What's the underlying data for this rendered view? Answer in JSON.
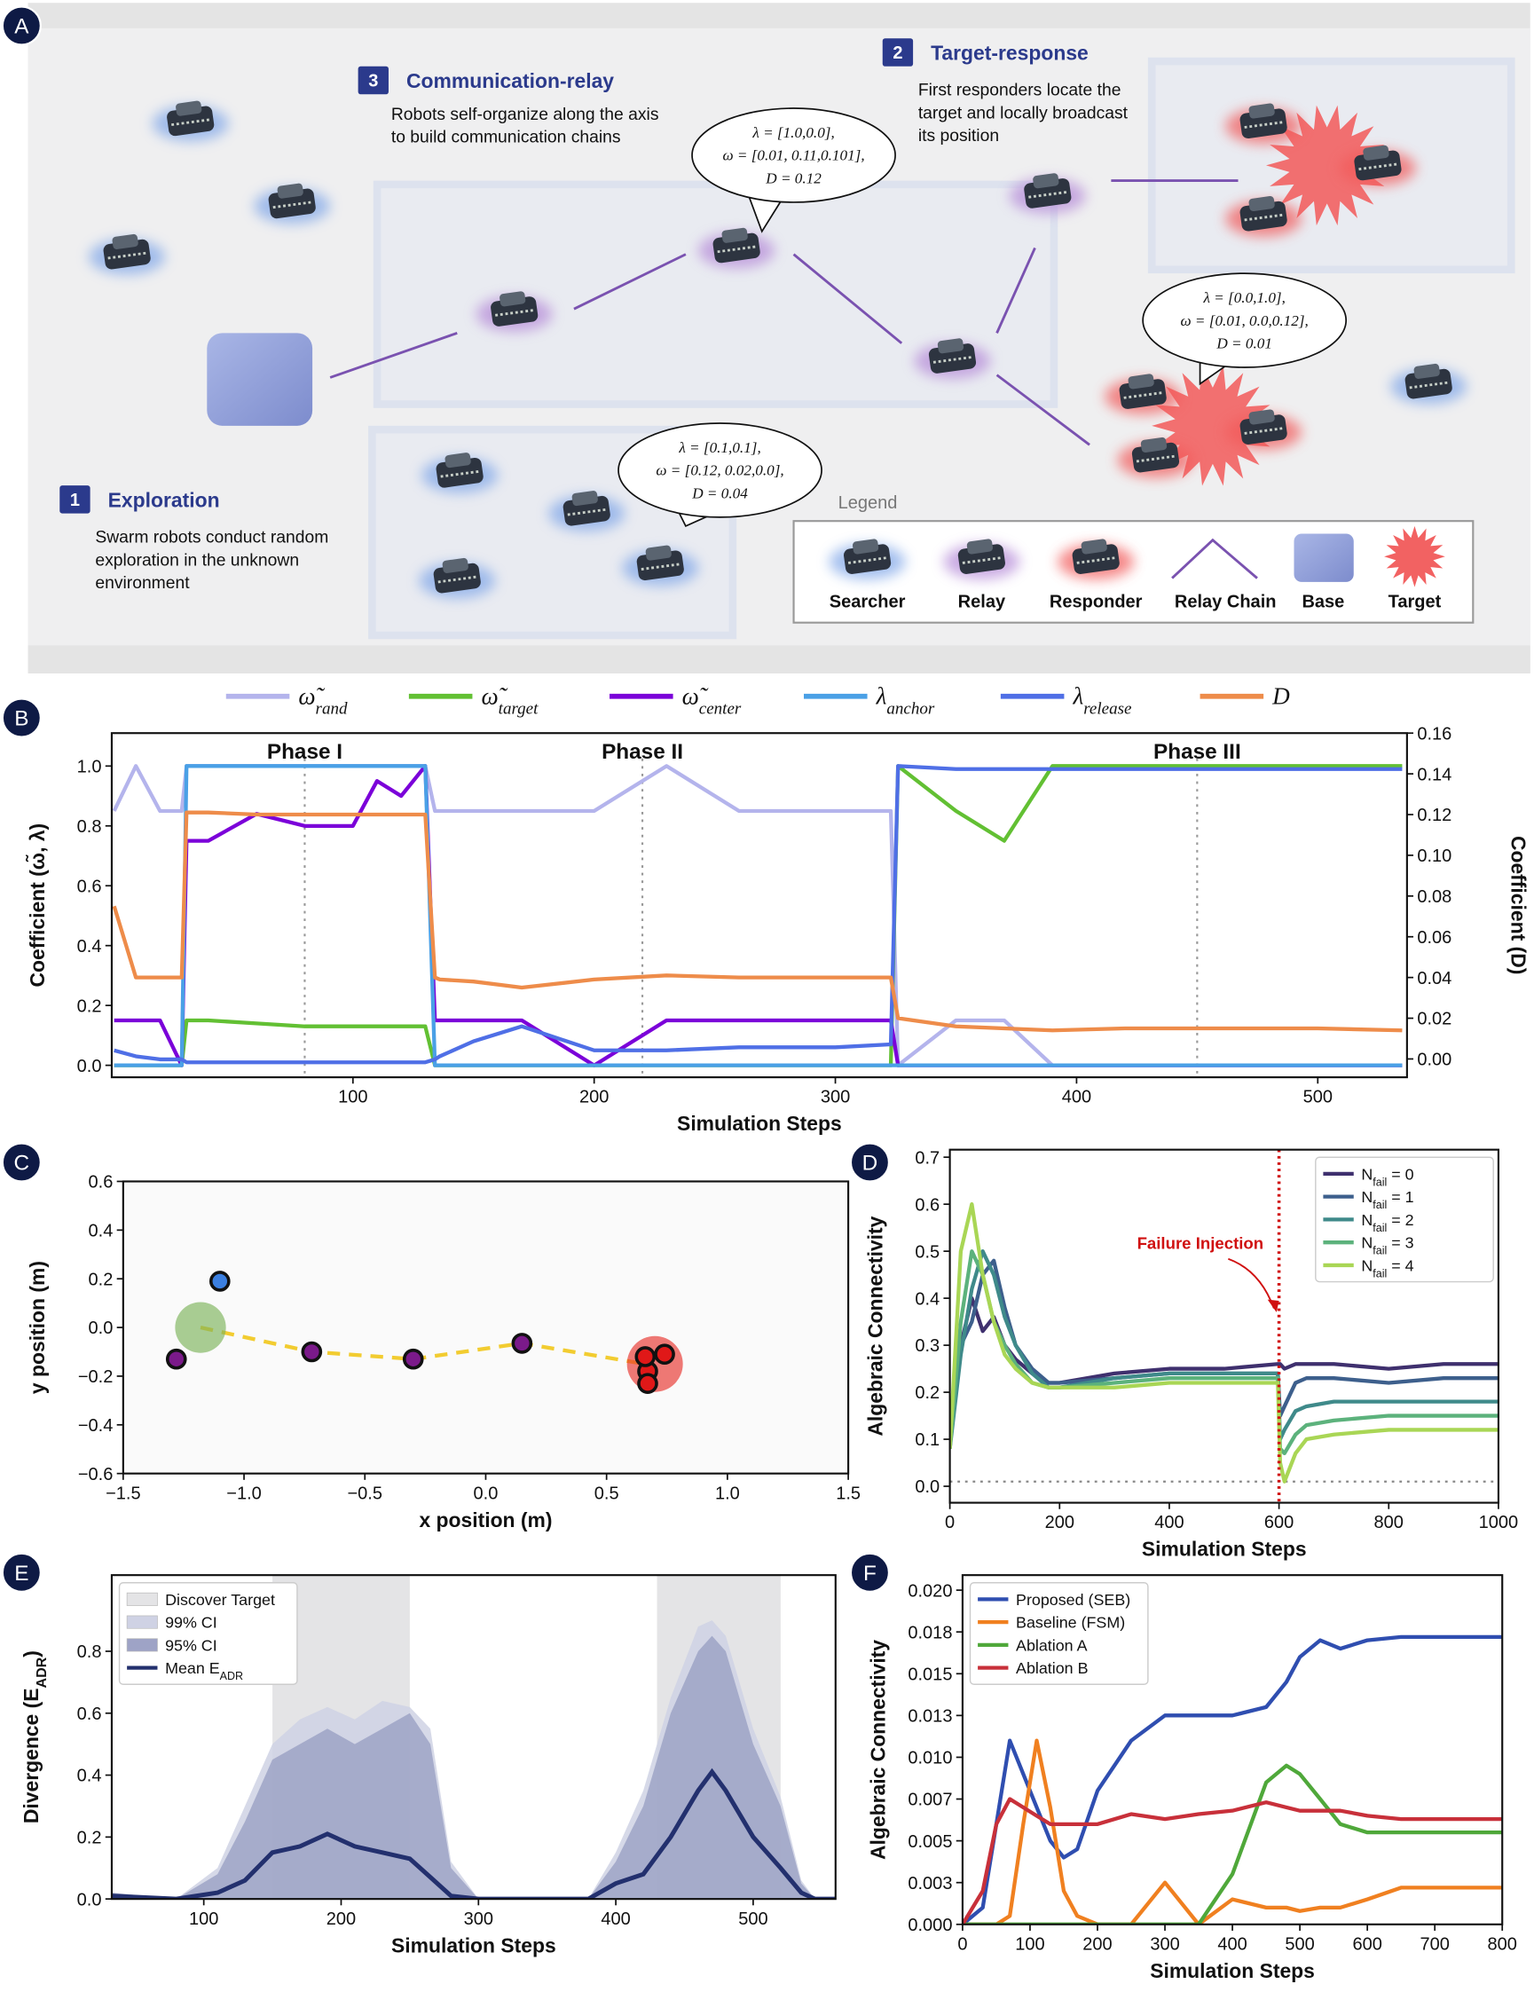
{
  "panel_labels": [
    "A",
    "B",
    "C",
    "D",
    "E",
    "F"
  ],
  "diagram": {
    "steps": [
      {
        "number": "1",
        "title": "Exploration",
        "lines": [
          "Swarm robots conduct random",
          "exploration in the unknown",
          "environment"
        ]
      },
      {
        "number": "2",
        "title": "Target-response",
        "lines": [
          "First responders locate the",
          "target and locally broadcast",
          "its position"
        ]
      },
      {
        "number": "3",
        "title": "Communication-relay",
        "lines": [
          "Robots self-organize along the axis",
          "to build communication chains"
        ]
      }
    ],
    "bubbles": [
      {
        "lines": [
          "λ = [1.0,0.0],",
          "ω = [0.01, 0.11,0.101],",
          "D = 0.12"
        ]
      },
      {
        "lines": [
          "λ = [0.0,1.0],",
          "ω = [0.01, 0.0,0.12],",
          "D = 0.01"
        ]
      },
      {
        "lines": [
          "λ = [0.1,0.1],",
          "ω = [0.12, 0.02,0.0],",
          "D = 0.04"
        ]
      }
    ],
    "legend": {
      "title": "Legend",
      "items": [
        "Searcher",
        "Relay",
        "Responder",
        "Relay Chain",
        "Base",
        "Target"
      ]
    }
  },
  "chart_data": [
    {
      "type": "line",
      "xlabel": "Simulation Steps",
      "ylabel": "Coefficient (ω̃, λ)",
      "y2label": "Coefficient (D)",
      "legend": "top",
      "xlim": [
        0,
        537
      ],
      "xticks": [
        100,
        200,
        300,
        400,
        500
      ],
      "ylim": [
        -0.04,
        1.11
      ],
      "yticks": [
        {
          "value": 0,
          "label": "0.0"
        },
        0.2,
        0.4,
        0.6,
        0.8,
        {
          "value": 1,
          "label": "1.0"
        }
      ],
      "y2lim": [
        -0.009,
        0.16
      ],
      "y2ticks": [
        {
          "value": 0,
          "label": "0.00"
        },
        {
          "value": 0.02,
          "label": "0.02"
        },
        {
          "value": 0.04,
          "label": "0.04"
        },
        {
          "value": 0.06,
          "label": "0.06"
        },
        {
          "value": 0.08,
          "label": "0.08"
        },
        {
          "value": 0.1,
          "label": "0.10"
        },
        {
          "value": 0.12,
          "label": "0.12"
        },
        {
          "value": 0.14,
          "label": "0.14"
        },
        {
          "value": 0.16,
          "label": "0.16"
        }
      ],
      "phases": [
        {
          "label": "Phase I",
          "step": 80
        },
        {
          "label": "Phase II",
          "step": 220
        },
        {
          "label": "Phase III",
          "step": 450
        }
      ],
      "x": [
        1,
        10,
        20,
        29,
        31,
        40,
        60,
        80,
        100,
        110,
        120,
        130,
        134,
        136,
        150,
        170,
        200,
        230,
        260,
        300,
        323,
        326,
        350,
        370,
        390,
        420,
        460,
        500,
        535
      ],
      "series": [
        {
          "name": [
            "ω̃",
            "rand"
          ],
          "color": "#b4b4ec",
          "values": [
            0.85,
            1.0,
            0.85,
            0.85,
            1.0,
            1.0,
            1.0,
            1.0,
            1.0,
            1.0,
            1.0,
            1.0,
            0.85,
            0.85,
            0.85,
            0.85,
            0.85,
            1.0,
            0.85,
            0.85,
            0.85,
            0.0,
            0.15,
            0.15,
            0.0,
            0.0,
            0.0,
            0.0,
            0.0
          ]
        },
        {
          "name": [
            "ω̃",
            "target"
          ],
          "color": "#62c033",
          "values": [
            0,
            0,
            0,
            0,
            0.15,
            0.15,
            0.14,
            0.13,
            0.13,
            0.13,
            0.13,
            0.13,
            0,
            0,
            0,
            0,
            0,
            0,
            0,
            0,
            0,
            1.0,
            0.85,
            0.75,
            1.0,
            1.0,
            1.0,
            1.0,
            1.0
          ]
        },
        {
          "name": [
            "ω̃",
            "center"
          ],
          "color": "#7b00d9",
          "values": [
            0.15,
            0.15,
            0.15,
            0.0,
            0.75,
            0.75,
            0.84,
            0.8,
            0.8,
            0.95,
            0.9,
            1.0,
            0.15,
            0.15,
            0.15,
            0.15,
            0.0,
            0.15,
            0.15,
            0.15,
            0.15,
            0,
            0,
            0,
            0,
            0,
            0,
            0,
            0
          ]
        },
        {
          "name": [
            "λ",
            "anchor"
          ],
          "color": "#4aa0e6",
          "values": [
            0,
            0,
            0,
            0,
            1,
            1,
            1,
            1,
            1,
            1,
            1,
            1,
            0,
            0,
            0,
            0,
            0,
            0,
            0,
            0,
            0,
            0,
            0,
            0,
            0,
            0,
            0,
            0,
            0
          ]
        },
        {
          "name": [
            "λ",
            "release"
          ],
          "color": "#4f6fe6",
          "values": [
            0.05,
            0.03,
            0.02,
            0.02,
            0.01,
            0.01,
            0.01,
            0.01,
            0.01,
            0.01,
            0.01,
            0.01,
            0.02,
            0.03,
            0.08,
            0.13,
            0.05,
            0.05,
            0.06,
            0.06,
            0.07,
            1.0,
            0.99,
            0.99,
            0.99,
            0.99,
            0.99,
            0.99,
            0.99
          ]
        },
        {
          "name": "D",
          "color": "#ee8c4a",
          "axis": "y2",
          "values": [
            0.075,
            0.04,
            0.04,
            0.04,
            0.121,
            0.121,
            0.12,
            0.12,
            0.12,
            0.12,
            0.12,
            0.12,
            0.04,
            0.039,
            0.038,
            0.035,
            0.039,
            0.041,
            0.04,
            0.04,
            0.04,
            0.02,
            0.016,
            0.015,
            0.014,
            0.015,
            0.015,
            0.015,
            0.014
          ]
        }
      ]
    },
    {
      "type": "scatter",
      "xlabel": "x position (m)",
      "ylabel": "y position (m)",
      "xlim": [
        -1.5,
        1.5
      ],
      "xticks": [
        {
          "value": -1.5,
          "label": "−1.5"
        },
        {
          "value": -1,
          "label": "−1.0"
        },
        {
          "value": -0.5,
          "label": "−0.5"
        },
        {
          "value": 0,
          "label": "0.0"
        },
        0.5,
        {
          "value": 1,
          "label": "1.0"
        },
        1.5
      ],
      "ylim": [
        -0.6,
        0.6
      ],
      "yticks": [
        {
          "value": -0.6,
          "label": "−0.6"
        },
        {
          "value": -0.4,
          "label": "−0.4"
        },
        {
          "value": -0.2,
          "label": "−0.2"
        },
        {
          "value": 0,
          "label": "0.0"
        },
        0.2,
        0.4,
        0.6
      ],
      "series": [
        {
          "kind": "chain",
          "color": "#f2cc30",
          "x": [
            -1.18,
            -0.72,
            -0.3,
            0.15,
            0.66
          ],
          "y": [
            0,
            -0.1,
            -0.13,
            -0.065,
            -0.15
          ]
        },
        {
          "kind": "base",
          "color": "#7db35a",
          "x": [
            -1.18
          ],
          "y": [
            0.0
          ]
        },
        {
          "kind": "target",
          "color": "#e8322c",
          "x": [
            0.7
          ],
          "y": [
            -0.15
          ]
        },
        {
          "kind": "robot",
          "color": "#3b7fe0",
          "x": [
            -1.1
          ],
          "y": [
            0.19
          ]
        },
        {
          "kind": "robot",
          "color": "#7b1a8a",
          "x": [
            -1.28,
            -0.72,
            -0.3,
            0.15
          ],
          "y": [
            -0.13,
            -0.1,
            -0.13,
            -0.065
          ]
        },
        {
          "kind": "robot",
          "color": "#e01818",
          "x": [
            0.67,
            0.74,
            0.66,
            0.67
          ],
          "y": [
            -0.18,
            -0.11,
            -0.12,
            -0.23
          ]
        }
      ]
    },
    {
      "type": "line",
      "xlabel": "Simulation Steps",
      "ylabel": "Algebraic Connectivity",
      "legend": "upper right",
      "xlim": [
        0,
        1000
      ],
      "xticks": [
        0,
        200,
        400,
        600,
        800,
        1000
      ],
      "ylim": [
        -0.035,
        0.716
      ],
      "yticks": [
        {
          "value": 0,
          "label": "0.0"
        },
        0.1,
        0.2,
        0.3,
        0.4,
        0.5,
        0.6,
        0.7
      ],
      "annotation": {
        "text": "Failure Injection",
        "x": 600
      },
      "hline": 0.01,
      "x": [
        0,
        20,
        40,
        60,
        80,
        100,
        120,
        150,
        180,
        200,
        300,
        400,
        500,
        598,
        602,
        610,
        630,
        650,
        700,
        800,
        900,
        1000
      ],
      "series": [
        {
          "name": [
            "N",
            "fail",
            " = 0"
          ],
          "color": "#3f306e",
          "values": [
            0.1,
            0.3,
            0.4,
            0.33,
            0.36,
            0.3,
            0.27,
            0.24,
            0.22,
            0.22,
            0.24,
            0.25,
            0.25,
            0.26,
            0.26,
            0.25,
            0.26,
            0.26,
            0.26,
            0.25,
            0.26,
            0.26
          ]
        },
        {
          "name": [
            "N",
            "fail",
            " = 1"
          ],
          "color": "#3d5f8c",
          "values": [
            0.1,
            0.3,
            0.35,
            0.45,
            0.48,
            0.38,
            0.3,
            0.25,
            0.22,
            0.22,
            0.23,
            0.24,
            0.24,
            0.24,
            0.15,
            0.17,
            0.22,
            0.23,
            0.23,
            0.22,
            0.23,
            0.23
          ]
        },
        {
          "name": [
            "N",
            "fail",
            " = 2"
          ],
          "color": "#3f8a8a",
          "values": [
            0.08,
            0.28,
            0.42,
            0.5,
            0.45,
            0.36,
            0.3,
            0.24,
            0.21,
            0.21,
            0.23,
            0.24,
            0.24,
            0.24,
            0.1,
            0.12,
            0.16,
            0.17,
            0.18,
            0.18,
            0.18,
            0.18
          ]
        },
        {
          "name": [
            "N",
            "fail",
            " = 3"
          ],
          "color": "#5cb27c",
          "values": [
            0.08,
            0.35,
            0.5,
            0.45,
            0.35,
            0.3,
            0.26,
            0.22,
            0.21,
            0.21,
            0.22,
            0.23,
            0.23,
            0.23,
            0.08,
            0.07,
            0.11,
            0.13,
            0.14,
            0.15,
            0.15,
            0.15
          ]
        },
        {
          "name": [
            "N",
            "fail",
            " = 4"
          ],
          "color": "#a9d655",
          "values": [
            0.08,
            0.5,
            0.6,
            0.45,
            0.35,
            0.28,
            0.25,
            0.22,
            0.21,
            0.21,
            0.21,
            0.22,
            0.22,
            0.22,
            0.05,
            0.01,
            0.07,
            0.1,
            0.11,
            0.12,
            0.12,
            0.12
          ]
        }
      ]
    },
    {
      "type": "area",
      "xlabel": "Simulation Steps",
      "ylabel": [
        "Divergence (E",
        "ADR",
        ")"
      ],
      "legend": "upper left",
      "xlim": [
        33,
        560
      ],
      "xticks": [
        100,
        200,
        300,
        400,
        500
      ],
      "ylim": [
        0,
        1.046
      ],
      "yticks": [
        {
          "value": 0,
          "label": "0.0"
        },
        0.2,
        0.4,
        0.6,
        0.8
      ],
      "highlight": {
        "name": "Discover Target",
        "color": "#e4e4e6",
        "ranges": [
          [
            150,
            250
          ],
          [
            430,
            520
          ]
        ]
      },
      "x": [
        33,
        80,
        110,
        130,
        150,
        170,
        190,
        210,
        230,
        250,
        265,
        280,
        300,
        380,
        400,
        420,
        440,
        460,
        470,
        480,
        500,
        520,
        535,
        545,
        560
      ],
      "series": [
        {
          "name": "99% CI",
          "kind": "area",
          "color": "#cfd2e4",
          "values": [
            0.02,
            0.0,
            0.1,
            0.3,
            0.5,
            0.58,
            0.62,
            0.58,
            0.64,
            0.62,
            0.55,
            0.12,
            0.0,
            0.0,
            0.15,
            0.35,
            0.65,
            0.88,
            0.9,
            0.85,
            0.55,
            0.33,
            0.06,
            0.0,
            0.0
          ]
        },
        {
          "name": "95% CI",
          "kind": "area",
          "color": "#9ea3c6",
          "values": [
            0.02,
            0.0,
            0.08,
            0.25,
            0.45,
            0.5,
            0.55,
            0.5,
            0.55,
            0.6,
            0.5,
            0.1,
            0.0,
            0.0,
            0.12,
            0.3,
            0.6,
            0.8,
            0.85,
            0.8,
            0.5,
            0.3,
            0.05,
            0.0,
            0.0
          ]
        },
        {
          "name": [
            "Mean E",
            "ADR"
          ],
          "kind": "line",
          "color": "#23306e",
          "values": [
            0.01,
            0.0,
            0.02,
            0.06,
            0.15,
            0.17,
            0.21,
            0.17,
            0.15,
            0.13,
            0.07,
            0.01,
            0.0,
            0.0,
            0.05,
            0.08,
            0.2,
            0.35,
            0.41,
            0.35,
            0.2,
            0.1,
            0.02,
            0.0,
            0.0
          ]
        }
      ]
    },
    {
      "type": "line",
      "xlabel": "Simulation Steps",
      "ylabel": "Algebraic Connectivity",
      "legend": "upper left",
      "xlim": [
        0,
        800
      ],
      "xticks": [
        0,
        100,
        200,
        300,
        400,
        500,
        600,
        700,
        800
      ],
      "ylim": [
        0,
        0.0209
      ],
      "yticks": [
        {
          "value": 0,
          "label": "0.000"
        },
        {
          "value": 0.0025,
          "label": "0.003"
        },
        {
          "value": 0.005,
          "label": "0.005"
        },
        {
          "value": 0.0075,
          "label": "0.007"
        },
        {
          "value": 0.01,
          "label": "0.010"
        },
        {
          "value": 0.0125,
          "label": "0.013"
        },
        {
          "value": 0.015,
          "label": "0.015"
        },
        {
          "value": 0.0175,
          "label": "0.018"
        },
        {
          "value": 0.02,
          "label": "0.020"
        }
      ],
      "x": [
        0,
        30,
        50,
        70,
        90,
        110,
        130,
        150,
        170,
        200,
        250,
        300,
        350,
        400,
        450,
        480,
        500,
        530,
        560,
        600,
        650,
        700,
        800
      ],
      "series": [
        {
          "name": "Proposed (SEB)",
          "color": "#2f4eb0",
          "values": [
            0,
            0.001,
            0.006,
            0.011,
            0.009,
            0.007,
            0.005,
            0.004,
            0.0045,
            0.008,
            0.011,
            0.0125,
            0.0125,
            0.0125,
            0.013,
            0.0145,
            0.016,
            0.017,
            0.0165,
            0.017,
            0.0172,
            0.0172,
            0.0172
          ]
        },
        {
          "name": "Baseline (FSM)",
          "color": "#f08020",
          "values": [
            0,
            0,
            0,
            0.0005,
            0.006,
            0.011,
            0.007,
            0.002,
            0.0005,
            0,
            0,
            0.0025,
            0,
            0.0015,
            0.001,
            0.001,
            0.0008,
            0.001,
            0.001,
            0.0015,
            0.0022,
            0.0022,
            0.0022
          ]
        },
        {
          "name": "Ablation A",
          "color": "#4fa83a",
          "values": [
            0,
            0,
            0,
            0,
            0,
            0,
            0,
            0,
            0,
            0,
            0,
            0,
            0,
            0.003,
            0.0085,
            0.0095,
            0.009,
            0.0075,
            0.006,
            0.0055,
            0.0055,
            0.0055,
            0.0055
          ]
        },
        {
          "name": "Ablation B",
          "color": "#c8303a",
          "values": [
            0,
            0.002,
            0.006,
            0.0075,
            0.007,
            0.0065,
            0.006,
            0.006,
            0.006,
            0.006,
            0.0066,
            0.0063,
            0.0066,
            0.0068,
            0.0073,
            0.007,
            0.0068,
            0.0068,
            0.0068,
            0.0065,
            0.0063,
            0.0063,
            0.0063
          ]
        }
      ]
    }
  ]
}
